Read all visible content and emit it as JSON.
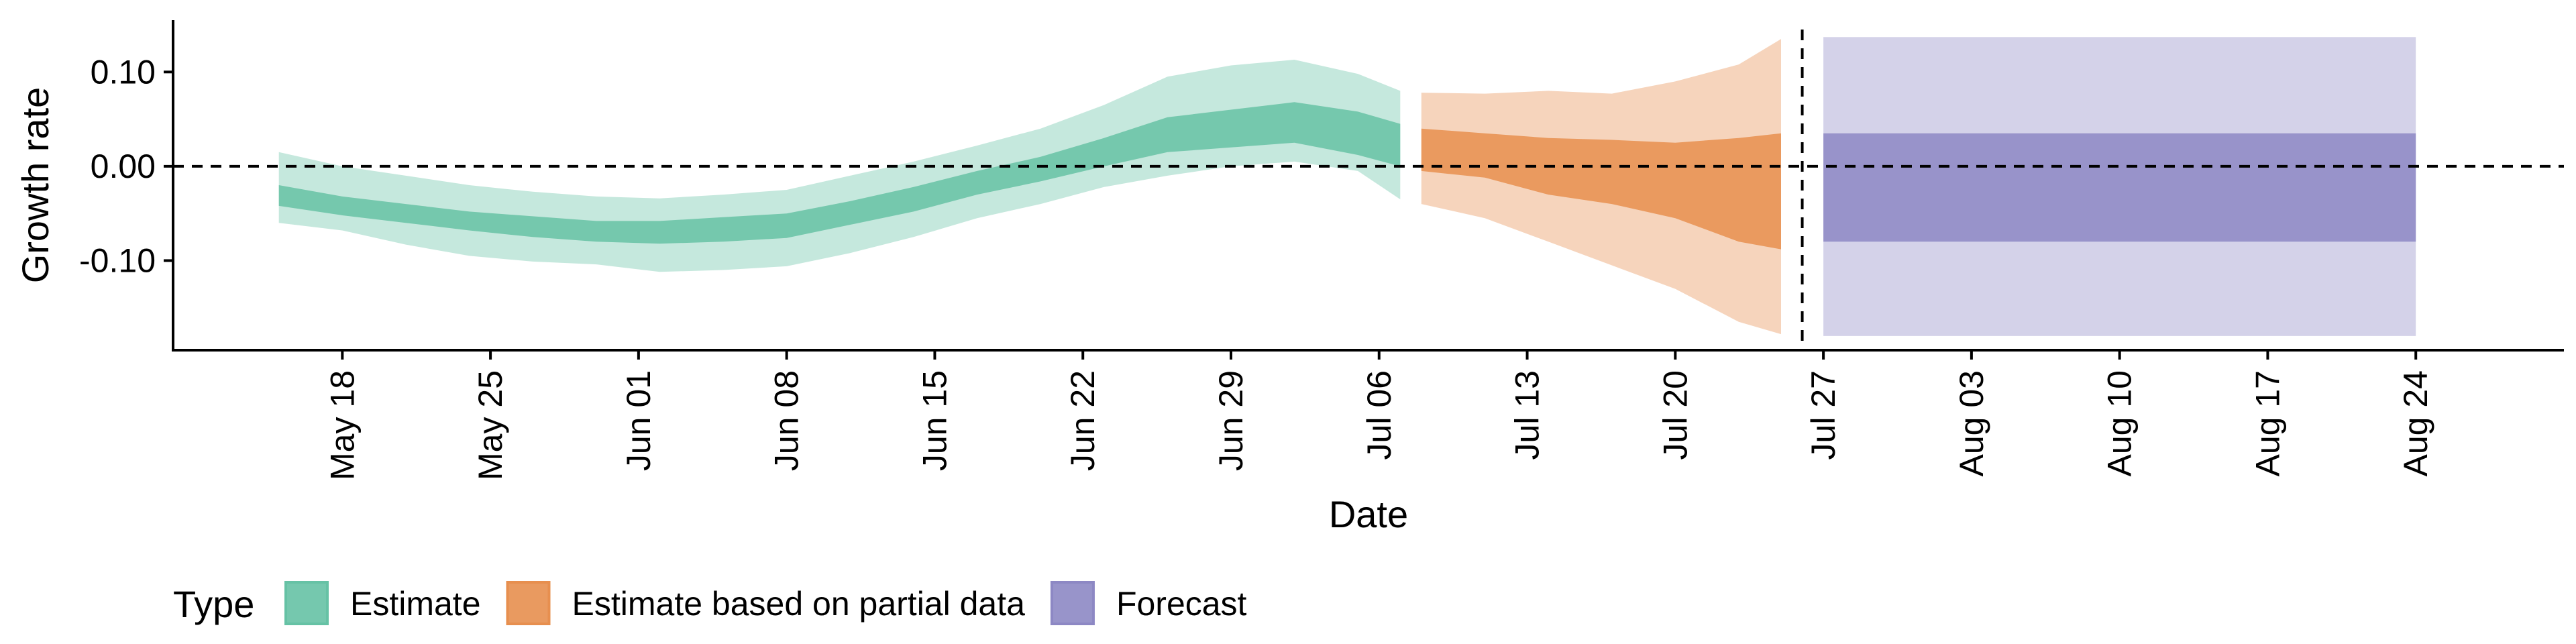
{
  "chart_data": {
    "type": "area",
    "xlabel": "Date",
    "ylabel": "Growth rate",
    "ylim": [
      -0.195,
      0.155
    ],
    "xlim": [
      "2020-05-10",
      "2020-08-31"
    ],
    "y_ticks": [
      {
        "value": 0.1,
        "label": "0.10"
      },
      {
        "value": 0.0,
        "label": "0.00"
      },
      {
        "value": -0.1,
        "label": "-0.10"
      }
    ],
    "x_ticks": [
      {
        "date": "2020-05-18",
        "label": "May 18"
      },
      {
        "date": "2020-05-25",
        "label": "May 25"
      },
      {
        "date": "2020-06-01",
        "label": "Jun 01"
      },
      {
        "date": "2020-06-08",
        "label": "Jun 08"
      },
      {
        "date": "2020-06-15",
        "label": "Jun 15"
      },
      {
        "date": "2020-06-22",
        "label": "Jun 22"
      },
      {
        "date": "2020-06-29",
        "label": "Jun 29"
      },
      {
        "date": "2020-07-06",
        "label": "Jul 06"
      },
      {
        "date": "2020-07-13",
        "label": "Jul 13"
      },
      {
        "date": "2020-07-20",
        "label": "Jul 20"
      },
      {
        "date": "2020-07-27",
        "label": "Jul 27"
      },
      {
        "date": "2020-08-03",
        "label": "Aug 03"
      },
      {
        "date": "2020-08-10",
        "label": "Aug 10"
      },
      {
        "date": "2020-08-17",
        "label": "Aug 17"
      },
      {
        "date": "2020-08-24",
        "label": "Aug 24"
      }
    ],
    "hline_y": 0.0,
    "vline_date": "2020-07-26",
    "legend": {
      "title": "Type",
      "position": "bottom"
    },
    "series": [
      {
        "name": "Estimate",
        "color": "#66c2a5",
        "points": [
          {
            "x": "2020-05-15",
            "lo90": -0.06,
            "lo50": -0.042,
            "hi50": -0.02,
            "hi90": 0.015
          },
          {
            "x": "2020-05-18",
            "lo90": -0.068,
            "lo50": -0.052,
            "hi50": -0.032,
            "hi90": 0.0
          },
          {
            "x": "2020-05-21",
            "lo90": -0.083,
            "lo50": -0.06,
            "hi50": -0.04,
            "hi90": -0.01
          },
          {
            "x": "2020-05-24",
            "lo90": -0.095,
            "lo50": -0.068,
            "hi50": -0.048,
            "hi90": -0.02
          },
          {
            "x": "2020-05-27",
            "lo90": -0.101,
            "lo50": -0.075,
            "hi50": -0.053,
            "hi90": -0.027
          },
          {
            "x": "2020-05-30",
            "lo90": -0.104,
            "lo50": -0.08,
            "hi50": -0.058,
            "hi90": -0.032
          },
          {
            "x": "2020-06-02",
            "lo90": -0.112,
            "lo50": -0.082,
            "hi50": -0.058,
            "hi90": -0.034
          },
          {
            "x": "2020-06-05",
            "lo90": -0.11,
            "lo50": -0.08,
            "hi50": -0.054,
            "hi90": -0.03
          },
          {
            "x": "2020-06-08",
            "lo90": -0.106,
            "lo50": -0.076,
            "hi50": -0.05,
            "hi90": -0.025
          },
          {
            "x": "2020-06-11",
            "lo90": -0.092,
            "lo50": -0.062,
            "hi50": -0.037,
            "hi90": -0.01
          },
          {
            "x": "2020-06-14",
            "lo90": -0.075,
            "lo50": -0.048,
            "hi50": -0.022,
            "hi90": 0.005
          },
          {
            "x": "2020-06-17",
            "lo90": -0.055,
            "lo50": -0.03,
            "hi50": -0.005,
            "hi90": 0.022
          },
          {
            "x": "2020-06-20",
            "lo90": -0.04,
            "lo50": -0.016,
            "hi50": 0.01,
            "hi90": 0.04
          },
          {
            "x": "2020-06-23",
            "lo90": -0.022,
            "lo50": 0.0,
            "hi50": 0.03,
            "hi90": 0.065
          },
          {
            "x": "2020-06-26",
            "lo90": -0.01,
            "lo50": 0.015,
            "hi50": 0.052,
            "hi90": 0.095
          },
          {
            "x": "2020-06-29",
            "lo90": 0.0,
            "lo50": 0.02,
            "hi50": 0.06,
            "hi90": 0.107
          },
          {
            "x": "2020-07-02",
            "lo90": 0.005,
            "lo50": 0.025,
            "hi50": 0.068,
            "hi90": 0.113
          },
          {
            "x": "2020-07-05",
            "lo90": -0.005,
            "lo50": 0.012,
            "hi50": 0.058,
            "hi90": 0.098
          },
          {
            "x": "2020-07-07",
            "lo90": -0.035,
            "lo50": 0.0,
            "hi50": 0.045,
            "hi90": 0.08
          }
        ]
      },
      {
        "name": "Estimate based on partial data",
        "color": "#e78f4f",
        "points": [
          {
            "x": "2020-07-08",
            "lo90": -0.04,
            "lo50": -0.005,
            "hi50": 0.04,
            "hi90": 0.078
          },
          {
            "x": "2020-07-11",
            "lo90": -0.055,
            "lo50": -0.012,
            "hi50": 0.035,
            "hi90": 0.077
          },
          {
            "x": "2020-07-14",
            "lo90": -0.08,
            "lo50": -0.03,
            "hi50": 0.03,
            "hi90": 0.08
          },
          {
            "x": "2020-07-17",
            "lo90": -0.105,
            "lo50": -0.04,
            "hi50": 0.028,
            "hi90": 0.077
          },
          {
            "x": "2020-07-20",
            "lo90": -0.13,
            "lo50": -0.055,
            "hi50": 0.025,
            "hi90": 0.09
          },
          {
            "x": "2020-07-23",
            "lo90": -0.165,
            "lo50": -0.08,
            "hi50": 0.03,
            "hi90": 0.108
          },
          {
            "x": "2020-07-25",
            "lo90": -0.178,
            "lo50": -0.088,
            "hi50": 0.035,
            "hi90": 0.135
          }
        ]
      },
      {
        "name": "Forecast",
        "color": "#8d88c4",
        "points": [
          {
            "x": "2020-07-27",
            "lo90": -0.18,
            "lo50": -0.08,
            "hi50": 0.035,
            "hi90": 0.137
          },
          {
            "x": "2020-08-24",
            "lo90": -0.18,
            "lo50": -0.08,
            "hi50": 0.035,
            "hi90": 0.137
          }
        ]
      }
    ]
  }
}
